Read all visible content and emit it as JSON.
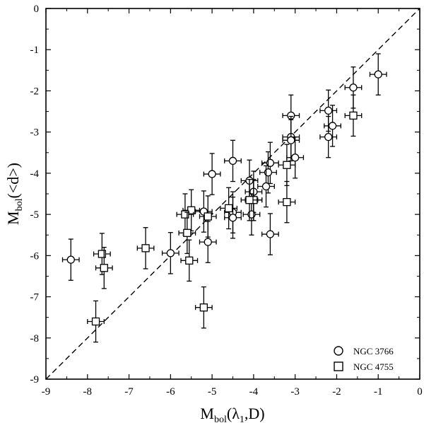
{
  "chart_data": {
    "type": "scatter",
    "title": "",
    "xlabel": {
      "main": "M",
      "sub": "bol",
      "arg_open": "(",
      "lambda": "λ",
      "lambda_sub": "1",
      "arg_rest": ",D)"
    },
    "ylabel": {
      "main": "M",
      "sub": "bol",
      "arg": "(<d>)"
    },
    "xlim": [
      -9,
      0
    ],
    "ylim": [
      -9,
      0
    ],
    "xticks": [
      -9,
      -8,
      -7,
      -6,
      -5,
      -4,
      -3,
      -2,
      -1,
      0
    ],
    "yticks": [
      -9,
      -8,
      -7,
      -6,
      -5,
      -4,
      -3,
      -2,
      -1,
      0
    ],
    "x_error": 0.2,
    "y_error": 0.5,
    "reference_line": {
      "from": [
        -9,
        -9
      ],
      "to": [
        0,
        0
      ],
      "style": "dashed"
    },
    "legend_position": "bottom-right",
    "series": [
      {
        "name": "NGC 3766",
        "marker": "circle",
        "points": [
          [
            -1.0,
            -1.6
          ],
          [
            -1.6,
            -1.92
          ],
          [
            -2.1,
            -2.85
          ],
          [
            -2.2,
            -2.48
          ],
          [
            -2.2,
            -3.12
          ],
          [
            -3.1,
            -2.6
          ],
          [
            -3.1,
            -3.12
          ],
          [
            -3.1,
            -3.2
          ],
          [
            -3.0,
            -3.62
          ],
          [
            -3.6,
            -3.75
          ],
          [
            -3.65,
            -3.98
          ],
          [
            -3.7,
            -4.32
          ],
          [
            -4.5,
            -3.7
          ],
          [
            -5.0,
            -4.02
          ],
          [
            -4.1,
            -4.18
          ],
          [
            -4.0,
            -4.45
          ],
          [
            -4.0,
            -4.65
          ],
          [
            -4.05,
            -5.0
          ],
          [
            -3.6,
            -5.48
          ],
          [
            -4.5,
            -4.95
          ],
          [
            -4.5,
            -5.08
          ],
          [
            -5.2,
            -4.93
          ],
          [
            -5.1,
            -5.67
          ],
          [
            -6.0,
            -5.94
          ],
          [
            -8.4,
            -6.1
          ]
        ]
      },
      {
        "name": "NGC 4755",
        "marker": "square",
        "points": [
          [
            -1.6,
            -2.6
          ],
          [
            -3.2,
            -3.8
          ],
          [
            -4.0,
            -4.65
          ],
          [
            -4.1,
            -4.65
          ],
          [
            -3.2,
            -4.7
          ],
          [
            -5.5,
            -4.9
          ],
          [
            -5.65,
            -5.0
          ],
          [
            -5.1,
            -5.05
          ],
          [
            -5.6,
            -5.45
          ],
          [
            -4.6,
            -4.85
          ],
          [
            -6.6,
            -5.82
          ],
          [
            -7.65,
            -5.96
          ],
          [
            -7.6,
            -6.3
          ],
          [
            -5.55,
            -6.12
          ],
          [
            -5.2,
            -7.26
          ],
          [
            -7.8,
            -7.6
          ]
        ]
      }
    ]
  }
}
